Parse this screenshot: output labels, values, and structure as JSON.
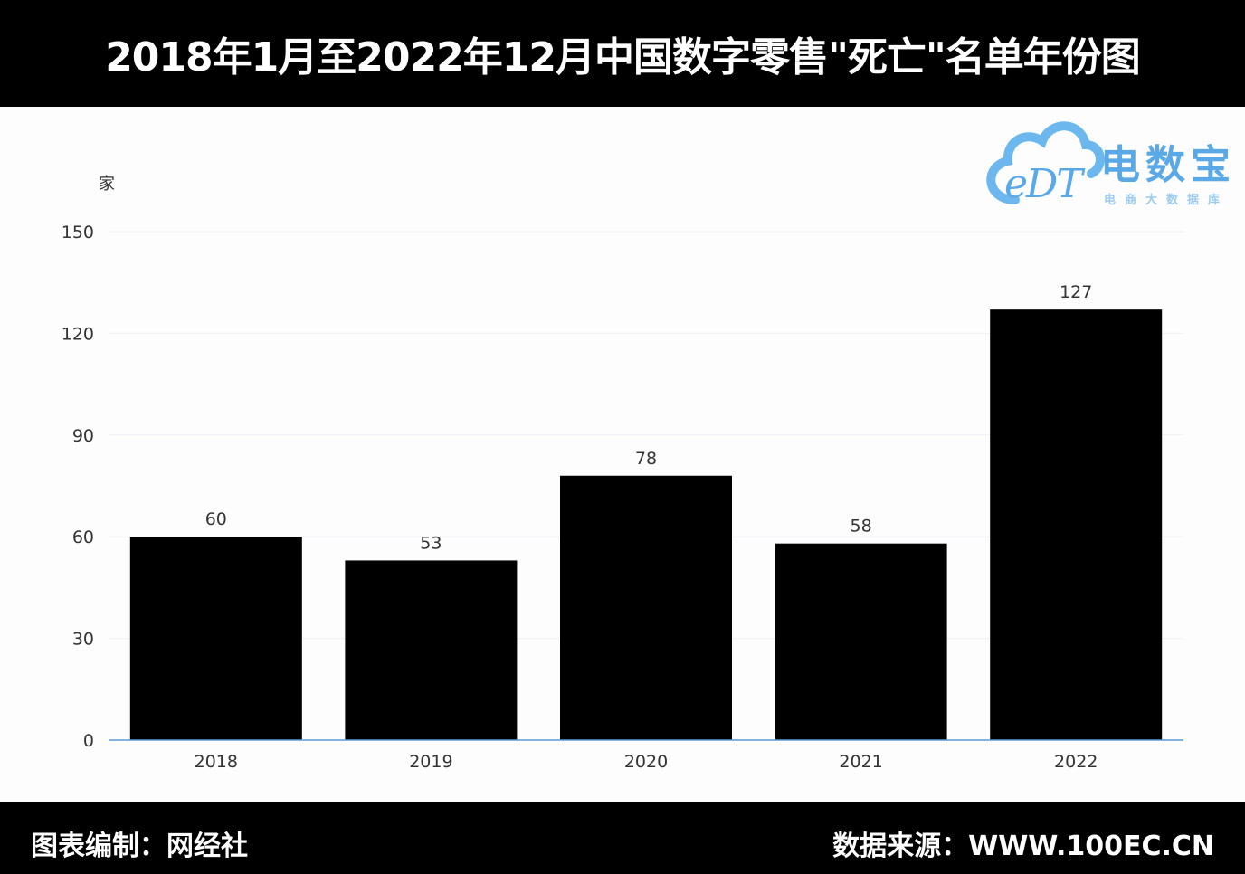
{
  "header": {
    "title": "2018年1月至2022年12月中国数字零售\"死亡\"名单年份图"
  },
  "footer": {
    "left": "图表编制：网经社",
    "right": "数据来源：WWW.100EC.CN"
  },
  "logo": {
    "brand_cn": "电数宝",
    "brand_en": "eDT",
    "tagline": "电商大数据库"
  },
  "colors": {
    "bar": "#000000",
    "grid": "#eef0f3",
    "axis": "#5b9bd5",
    "text": "#333333",
    "logo": "#5aa9e6"
  },
  "chart_data": {
    "type": "bar",
    "categories": [
      "2018",
      "2019",
      "2020",
      "2021",
      "2022"
    ],
    "values": [
      60,
      53,
      78,
      58,
      127
    ],
    "data_labels": [
      "60",
      "53",
      "78",
      "58",
      "127"
    ],
    "ylabel": "家",
    "ylim": [
      0,
      150
    ],
    "yticks": [
      0,
      30,
      60,
      90,
      120,
      150
    ],
    "grid": true,
    "legend": "none"
  }
}
